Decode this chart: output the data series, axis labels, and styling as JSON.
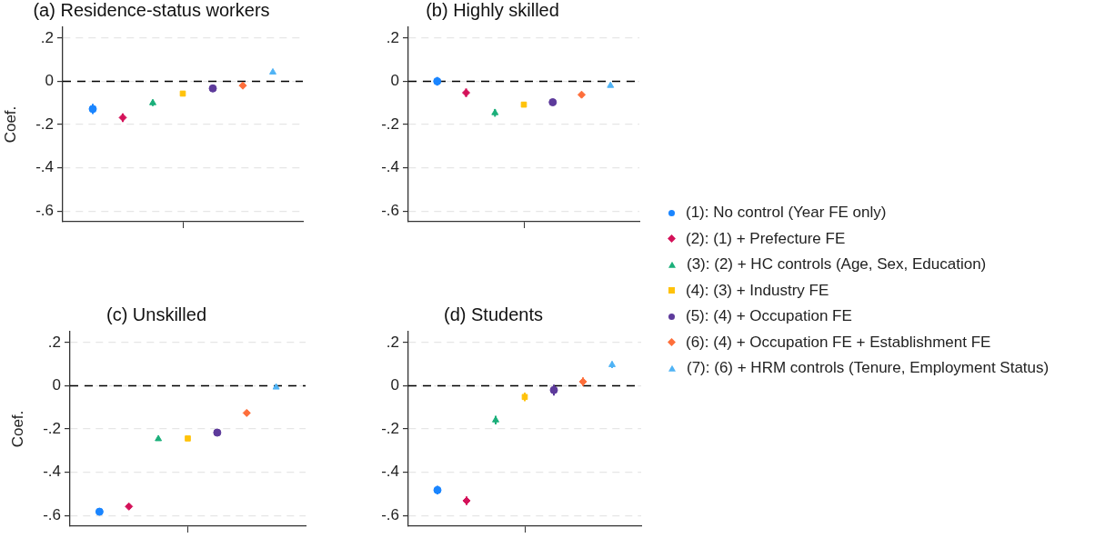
{
  "chart_data": [
    {
      "type": "scatter",
      "title": "(a) Residence-status workers",
      "ylabel": "Coef.",
      "categories": [
        null,
        null,
        null,
        null,
        null,
        null,
        null
      ],
      "ylim": [
        -0.65,
        0.25
      ],
      "yticks": [
        {
          "value": 0.2,
          "label": ".2"
        },
        {
          "value": 0,
          "label": "0"
        },
        {
          "value": -0.2,
          "label": "-.2"
        },
        {
          "value": -0.4,
          "label": "-.4"
        },
        {
          "value": -0.6,
          "label": "-.6"
        }
      ],
      "tick_labels": "y",
      "grid": "y",
      "ref_lines": [
        {
          "axis": "y",
          "value": 0,
          "color": "#000000",
          "line_style": "dashed"
        }
      ],
      "series": [
        {
          "color": "#1a85ff",
          "marker": "circle",
          "values": [
            -0.128,
            null,
            null,
            null,
            null,
            null,
            null
          ],
          "errors": [
            0.024,
            null,
            null,
            null,
            null,
            null,
            null
          ]
        },
        {
          "color": "#d41159",
          "marker": "diamond",
          "values": [
            null,
            -0.168,
            null,
            null,
            null,
            null,
            null
          ],
          "errors": [
            null,
            0.02,
            null,
            null,
            null,
            null,
            null
          ]
        },
        {
          "color": "#1aaf7a",
          "marker": "triangle",
          "values": [
            null,
            null,
            -0.1,
            null,
            null,
            null,
            null
          ],
          "errors": [
            null,
            null,
            0.015,
            null,
            null,
            null,
            null
          ]
        },
        {
          "color": "#ffc20a",
          "marker": "square",
          "values": [
            null,
            null,
            null,
            -0.057,
            null,
            null,
            null
          ],
          "errors": [
            null,
            null,
            null,
            0.012,
            null,
            null,
            null
          ]
        },
        {
          "color": "#5d3a9b",
          "marker": "circle",
          "values": [
            null,
            null,
            null,
            null,
            -0.033,
            null,
            null
          ],
          "errors": [
            null,
            null,
            null,
            null,
            0.01,
            null,
            null
          ]
        },
        {
          "color": "#fe6e3a",
          "marker": "diamond",
          "values": [
            null,
            null,
            null,
            null,
            null,
            -0.02,
            null
          ],
          "errors": [
            null,
            null,
            null,
            null,
            null,
            0.006,
            null
          ]
        },
        {
          "color": "#4fb3f5",
          "marker": "triangle",
          "values": [
            null,
            null,
            null,
            null,
            null,
            null,
            0.042
          ],
          "errors": [
            null,
            null,
            null,
            null,
            null,
            null,
            0.006
          ]
        }
      ]
    },
    {
      "type": "scatter",
      "title": "(b) Highly skilled",
      "categories": [
        null,
        null,
        null,
        null,
        null,
        null,
        null
      ],
      "ylim": [
        -0.65,
        0.25
      ],
      "yticks": [
        {
          "value": 0.2,
          "label": ".2"
        },
        {
          "value": 0,
          "label": "0"
        },
        {
          "value": -0.2,
          "label": "-.2"
        },
        {
          "value": -0.4,
          "label": "-.4"
        },
        {
          "value": -0.6,
          "label": "-.6"
        }
      ],
      "tick_labels": "y",
      "grid": "y",
      "legend": "right",
      "ref_lines": [
        {
          "axis": "y",
          "value": 0,
          "color": "#000000",
          "line_style": "dashed"
        }
      ],
      "series": [
        {
          "name": "(1): No control (Year FE only)",
          "color": "#1a85ff",
          "marker": "circle",
          "values": [
            0.0,
            null,
            null,
            null,
            null,
            null,
            null
          ],
          "errors": [
            0.02,
            null,
            null,
            null,
            null,
            null,
            null
          ]
        },
        {
          "name": "(2): (1) + Prefecture FE",
          "color": "#d41159",
          "marker": "diamond",
          "values": [
            null,
            -0.053,
            null,
            null,
            null,
            null,
            null
          ],
          "errors": [
            null,
            0.02,
            null,
            null,
            null,
            null,
            null
          ]
        },
        {
          "name": "(3): (2) + HC controls (Age, Sex, Education)",
          "color": "#1aaf7a",
          "marker": "triangle",
          "values": [
            null,
            null,
            -0.146,
            null,
            null,
            null,
            null
          ],
          "errors": [
            null,
            null,
            0.018,
            null,
            null,
            null,
            null
          ]
        },
        {
          "name": "(4): (3) + Industry FE",
          "color": "#ffc20a",
          "marker": "square",
          "values": [
            null,
            null,
            null,
            -0.108,
            null,
            null,
            null
          ],
          "errors": [
            null,
            null,
            null,
            0.012,
            null,
            null,
            null
          ]
        },
        {
          "name": "(5): (4) + Occupation FE",
          "color": "#5d3a9b",
          "marker": "circle",
          "values": [
            null,
            null,
            null,
            null,
            -0.097,
            null,
            null
          ],
          "errors": [
            null,
            null,
            null,
            null,
            0.012,
            null,
            null
          ]
        },
        {
          "name": "(6): (4) + Occupation FE + Establishment FE",
          "color": "#fe6e3a",
          "marker": "diamond",
          "values": [
            null,
            null,
            null,
            null,
            null,
            -0.062,
            null
          ],
          "errors": [
            null,
            null,
            null,
            null,
            null,
            0.006,
            null
          ]
        },
        {
          "name": "(7): (6) + HRM controls (Tenure, Employment Status)",
          "color": "#4fb3f5",
          "marker": "triangle",
          "values": [
            null,
            null,
            null,
            null,
            null,
            null,
            -0.02
          ],
          "errors": [
            null,
            null,
            null,
            null,
            null,
            null,
            0.006
          ]
        }
      ]
    },
    {
      "type": "scatter",
      "title": "(c) Unskilled",
      "ylabel": "Coef.",
      "categories": [
        null,
        null,
        null,
        null,
        null,
        null,
        null
      ],
      "ylim": [
        -0.65,
        0.25
      ],
      "yticks": [
        {
          "value": 0.2,
          "label": ".2"
        },
        {
          "value": 0,
          "label": "0"
        },
        {
          "value": -0.2,
          "label": "-.2"
        },
        {
          "value": -0.4,
          "label": "-.4"
        },
        {
          "value": -0.6,
          "label": "-.6"
        }
      ],
      "tick_labels": "y",
      "grid": "y",
      "ref_lines": [
        {
          "axis": "y",
          "value": 0,
          "color": "#000000",
          "line_style": "dashed"
        }
      ],
      "series": [
        {
          "color": "#1a85ff",
          "marker": "circle",
          "values": [
            -0.583,
            null,
            null,
            null,
            null,
            null,
            null
          ]
        },
        {
          "color": "#d41159",
          "marker": "diamond",
          "values": [
            null,
            -0.559,
            null,
            null,
            null,
            null,
            null
          ]
        },
        {
          "color": "#1aaf7a",
          "marker": "triangle",
          "values": [
            null,
            null,
            -0.246,
            null,
            null,
            null,
            null
          ]
        },
        {
          "color": "#ffc20a",
          "marker": "square",
          "values": [
            null,
            null,
            null,
            -0.244,
            null,
            null,
            null
          ]
        },
        {
          "color": "#5d3a9b",
          "marker": "circle",
          "values": [
            null,
            null,
            null,
            null,
            -0.217,
            null,
            null
          ]
        },
        {
          "color": "#fe6e3a",
          "marker": "diamond",
          "values": [
            null,
            null,
            null,
            null,
            null,
            -0.126,
            null
          ]
        },
        {
          "color": "#4fb3f5",
          "marker": "triangle",
          "values": [
            null,
            null,
            null,
            null,
            null,
            null,
            -0.007
          ]
        }
      ]
    },
    {
      "type": "scatter",
      "title": "(d) Students",
      "categories": [
        null,
        null,
        null,
        null,
        null,
        null,
        null
      ],
      "ylim": [
        -0.65,
        0.25
      ],
      "yticks": [
        {
          "value": 0.2,
          "label": ".2"
        },
        {
          "value": 0,
          "label": "0"
        },
        {
          "value": -0.2,
          "label": "-.2"
        },
        {
          "value": -0.4,
          "label": "-.4"
        },
        {
          "value": -0.6,
          "label": "-.6"
        }
      ],
      "tick_labels": "y",
      "grid": "y",
      "ref_lines": [
        {
          "axis": "y",
          "value": 0,
          "color": "#000000",
          "line_style": "dashed"
        }
      ],
      "series": [
        {
          "color": "#1a85ff",
          "marker": "circle",
          "values": [
            -0.483,
            null,
            null,
            null,
            null,
            null,
            null
          ],
          "errors": [
            0.02,
            null,
            null,
            null,
            null,
            null,
            null
          ]
        },
        {
          "color": "#d41159",
          "marker": "diamond",
          "values": [
            null,
            -0.532,
            null,
            null,
            null,
            null,
            null
          ],
          "errors": [
            null,
            0.02,
            null,
            null,
            null,
            null,
            null
          ]
        },
        {
          "color": "#1aaf7a",
          "marker": "triangle",
          "values": [
            null,
            null,
            -0.159,
            null,
            null,
            null,
            null
          ],
          "errors": [
            null,
            null,
            0.02,
            null,
            null,
            null,
            null
          ]
        },
        {
          "color": "#ffc20a",
          "marker": "square",
          "values": [
            null,
            null,
            null,
            -0.052,
            null,
            null,
            null
          ],
          "errors": [
            null,
            null,
            null,
            0.02,
            null,
            null,
            null
          ]
        },
        {
          "color": "#5d3a9b",
          "marker": "circle",
          "values": [
            null,
            null,
            null,
            null,
            -0.02,
            null,
            null
          ],
          "errors": [
            null,
            null,
            null,
            null,
            0.025,
            null,
            null
          ]
        },
        {
          "color": "#fe6e3a",
          "marker": "diamond",
          "values": [
            null,
            null,
            null,
            null,
            null,
            0.019,
            null
          ],
          "errors": [
            null,
            null,
            null,
            null,
            null,
            0.02,
            null
          ]
        },
        {
          "color": "#4fb3f5",
          "marker": "triangle",
          "values": [
            null,
            null,
            null,
            null,
            null,
            null,
            0.097
          ],
          "errors": [
            null,
            null,
            null,
            null,
            null,
            null,
            0.015
          ]
        }
      ]
    }
  ]
}
